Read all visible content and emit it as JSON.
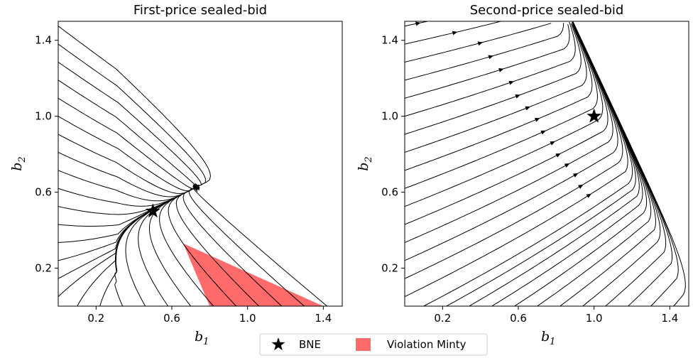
{
  "chart_data": [
    {
      "type": "streamplot",
      "title": "First-price sealed-bid",
      "xlabel": "b",
      "xlabel_sub": "1",
      "ylabel": "b",
      "ylabel_sub": "2",
      "xlim": [
        0,
        1.5
      ],
      "ylim": [
        0,
        1.5
      ],
      "xticks": [
        0.2,
        0.6,
        1.0,
        1.4
      ],
      "yticks": [
        0.2,
        0.6,
        1.0,
        1.4
      ],
      "xtick_labels": [
        "0.2",
        "0.6",
        "1.0",
        "1.4"
      ],
      "ytick_labels": [
        "0.2",
        "0.6",
        "1.0",
        "1.4"
      ],
      "bne": {
        "b1": 0.5,
        "b2": 0.5
      },
      "minty_violation_region": [
        [
          0.66,
          0.33
        ],
        [
          0.8,
          0.0
        ],
        [
          1.4,
          0.0
        ]
      ],
      "minty_color": "#ff6b6b"
    },
    {
      "type": "streamplot",
      "title": "Second-price sealed-bid",
      "xlabel": "b",
      "xlabel_sub": "1",
      "ylabel": "b",
      "ylabel_sub": "2",
      "xlim": [
        0,
        1.5
      ],
      "ylim": [
        0,
        1.5
      ],
      "xticks": [
        0.2,
        0.6,
        1.0,
        1.4
      ],
      "yticks": [
        0.2,
        0.6,
        1.0,
        1.4
      ],
      "xtick_labels": [
        "0.2",
        "0.6",
        "1.0",
        "1.4"
      ],
      "ytick_labels": [
        "0.2",
        "0.6",
        "1.0",
        "1.4"
      ],
      "bne": {
        "b1": 1.0,
        "b2": 1.0
      },
      "minty_violation_region": []
    }
  ],
  "legend": {
    "items": [
      {
        "label": "BNE",
        "marker": "star",
        "color": "#000000"
      },
      {
        "label": "Violation Minty",
        "marker": "square",
        "color": "#ff6b6b"
      }
    ]
  }
}
